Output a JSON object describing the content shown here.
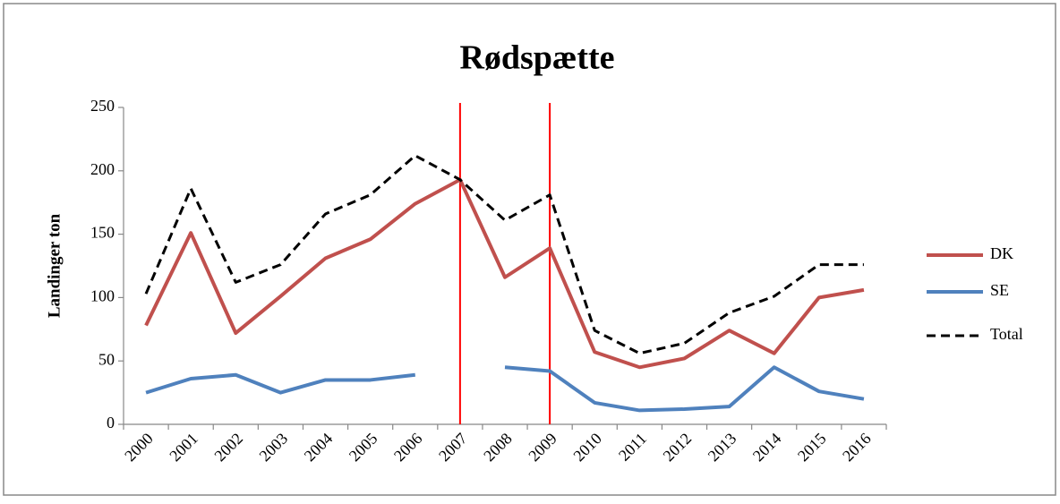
{
  "chart_data": {
    "type": "line",
    "title": "Rødspætte",
    "y_label": "Landinger ton",
    "categories": [
      "2000",
      "2001",
      "2002",
      "2003",
      "2004",
      "2005",
      "2006",
      "2007",
      "2008",
      "2009",
      "2010",
      "2011",
      "2012",
      "2013",
      "2014",
      "2015",
      "2016"
    ],
    "series": [
      {
        "name": "DK",
        "color": "#c0504d",
        "dash": "solid",
        "values": [
          78,
          151,
          72,
          101,
          131,
          146,
          174,
          193,
          116,
          139,
          57,
          45,
          52,
          74,
          56,
          100,
          106
        ]
      },
      {
        "name": "SE",
        "color": "#4f81bd",
        "dash": "solid",
        "values": [
          25,
          36,
          39,
          25,
          35,
          35,
          39,
          null,
          45,
          42,
          17,
          11,
          12,
          14,
          45,
          26,
          20
        ]
      },
      {
        "name": "Total",
        "color": "#000000",
        "dash": "dashed",
        "values": [
          103,
          186,
          112,
          126,
          166,
          181,
          212,
          193,
          161,
          181,
          74,
          56,
          64,
          88,
          101,
          126,
          126
        ]
      }
    ],
    "reference_lines": {
      "categories": [
        "2007",
        "2009"
      ],
      "color": "#ff0000"
    },
    "ylim": [
      0,
      250
    ],
    "yticks": [
      0,
      50,
      100,
      150,
      200,
      250
    ],
    "legend": "right"
  }
}
